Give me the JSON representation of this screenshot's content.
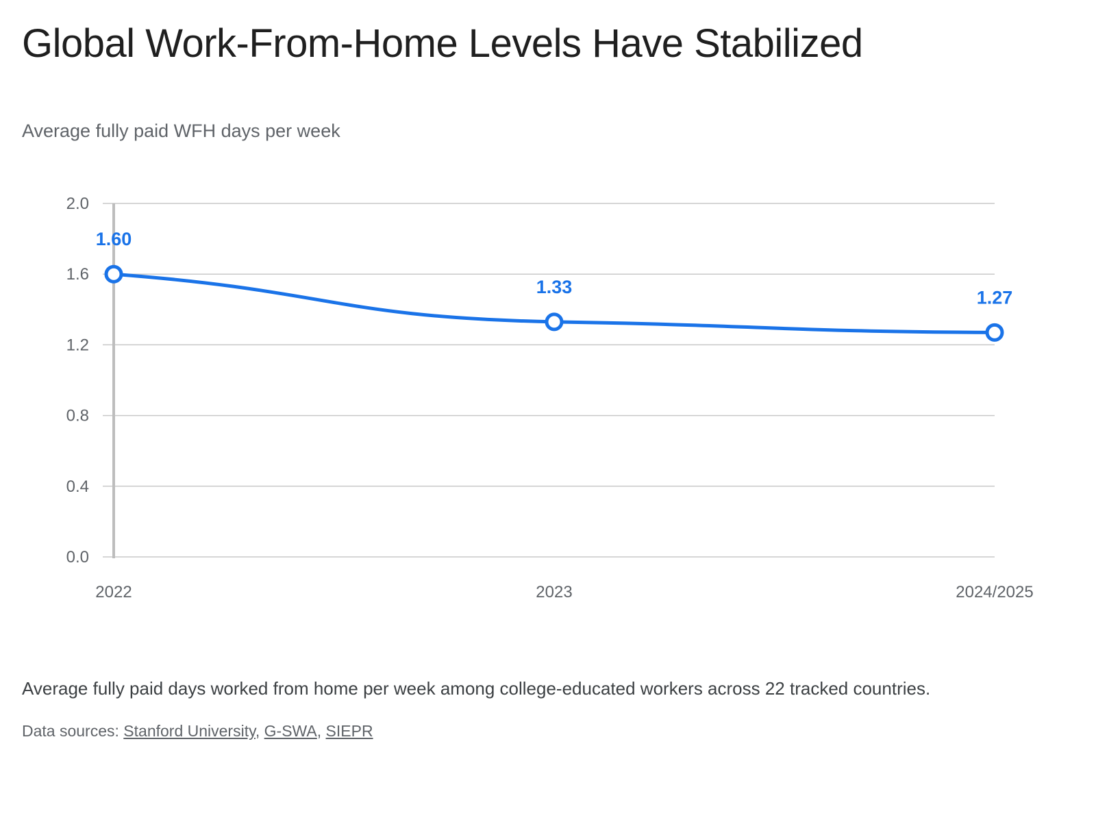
{
  "title": "Global Work-From-Home Levels Have Stabilized",
  "subtitle": "Average fully paid WFH days per week",
  "caption": "Average fully paid days worked from home per week among college-educated workers across 22 tracked countries.",
  "sources": {
    "prefix": "Data sources:",
    "links": [
      "Stanford University",
      "G-SWA",
      "SIEPR"
    ],
    "separator": ","
  },
  "colors": {
    "series": "#1a73e8",
    "grid": "#c8c8c8",
    "axis": "#bdbdbd"
  },
  "chart_data": {
    "type": "line",
    "title": "Global Work-From-Home Levels Have Stabilized",
    "ylabel": "Average fully paid WFH days per week",
    "xlabel": "",
    "categories": [
      "2022",
      "2023",
      "2024/2025"
    ],
    "series": [
      {
        "values": [
          1.6,
          1.33,
          1.27
        ],
        "labels": [
          "1.60",
          "1.33",
          "1.27"
        ]
      }
    ],
    "ylim": [
      0,
      2.0
    ],
    "yticks": [
      "0.0",
      "0.4",
      "0.8",
      "1.2",
      "1.6",
      "2.0"
    ],
    "grid": true,
    "legend": "none"
  }
}
